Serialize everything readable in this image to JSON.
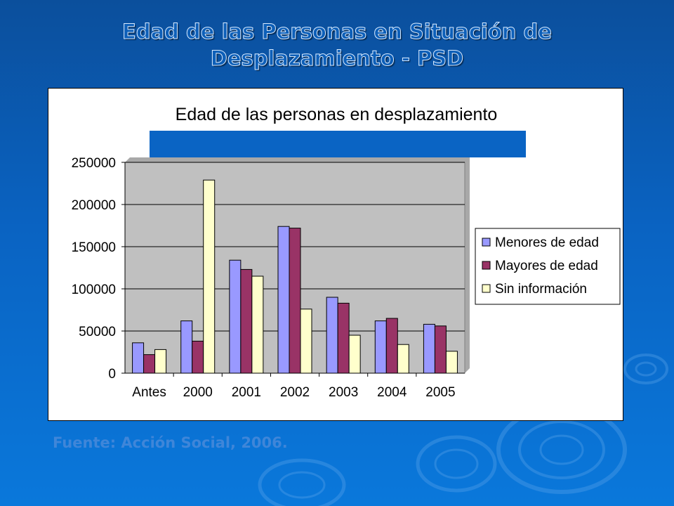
{
  "slide": {
    "title_line1": "Edad de las Personas en Situación de",
    "title_line2": "Desplazamiento - PSD",
    "source": "Fuente: Acción Social, 2006."
  },
  "chart_data": {
    "type": "bar",
    "title": "Edad de las personas en desplazamiento",
    "categories": [
      "Antes",
      "2000",
      "2001",
      "2002",
      "2003",
      "2004",
      "2005"
    ],
    "series": [
      {
        "name": "Menores de edad",
        "color": "#9999ff",
        "values": [
          36000,
          62000,
          134000,
          174000,
          90000,
          62000,
          58000
        ]
      },
      {
        "name": "Mayores de edad",
        "color": "#993366",
        "values": [
          22000,
          38000,
          123000,
          172000,
          83000,
          65000,
          56000
        ]
      },
      {
        "name": "Sin información",
        "color": "#ffffcc",
        "values": [
          28000,
          229000,
          115000,
          76000,
          45000,
          34000,
          26000
        ]
      }
    ],
    "yticks": [
      "0",
      "50000",
      "100000",
      "150000",
      "200000",
      "250000"
    ],
    "ylim": [
      0,
      250000
    ],
    "grid": true,
    "legend_position": "right",
    "plot_background": "#c0c0c0",
    "title_bar_color": "#0a64c4"
  }
}
